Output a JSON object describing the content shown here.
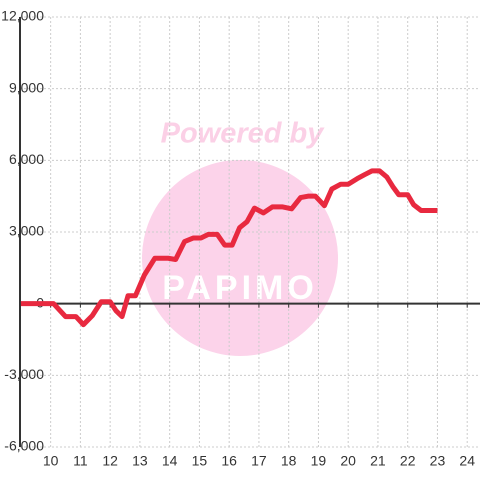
{
  "chart_data": {
    "type": "line",
    "watermark": {
      "line1": "Powered by",
      "line2": "PAPIMO"
    },
    "x": [
      9,
      10.1,
      10.5,
      10.85,
      11.1,
      11.4,
      11.7,
      12,
      12.2,
      12.4,
      12.6,
      12.85,
      13.15,
      13.5,
      13.95,
      14.2,
      14.5,
      14.8,
      15.05,
      15.3,
      15.6,
      15.85,
      16.1,
      16.35,
      16.6,
      16.85,
      17.15,
      17.45,
      17.8,
      18.1,
      18.4,
      18.65,
      18.9,
      19.2,
      19.45,
      19.75,
      20,
      20.3,
      20.55,
      20.8,
      21.05,
      21.3,
      21.5,
      21.7,
      22,
      22.2,
      22.45,
      23
    ],
    "series": [
      {
        "color": "#e8293f",
        "values": [
          0,
          0,
          -540,
          -540,
          -880,
          -500,
          80,
          80,
          -300,
          -540,
          330,
          330,
          1200,
          1900,
          1900,
          1850,
          2600,
          2750,
          2750,
          2900,
          2900,
          2450,
          2450,
          3180,
          3430,
          4000,
          3800,
          4050,
          4050,
          3970,
          4440,
          4500,
          4500,
          4100,
          4800,
          5000,
          5000,
          5230,
          5400,
          5560,
          5560,
          5300,
          4900,
          4560,
          4560,
          4140,
          3900,
          3900
        ]
      }
    ],
    "xlim": [
      8.97,
      24.43
    ],
    "xticks": [
      10,
      11,
      12,
      13,
      14,
      15,
      16,
      17,
      18,
      19,
      20,
      21,
      22,
      23,
      24
    ],
    "ylim": [
      -6000,
      12000
    ],
    "yticks": [
      {
        "value": -6000,
        "label": "-6,000"
      },
      {
        "value": -3000,
        "label": "-3,000"
      },
      0,
      {
        "value": 3000,
        "label": "3,000"
      },
      {
        "value": 6000,
        "label": "6,000"
      },
      {
        "value": 9000,
        "label": "9,000"
      },
      {
        "value": 12000,
        "label": "12,000"
      }
    ],
    "grid": true
  }
}
